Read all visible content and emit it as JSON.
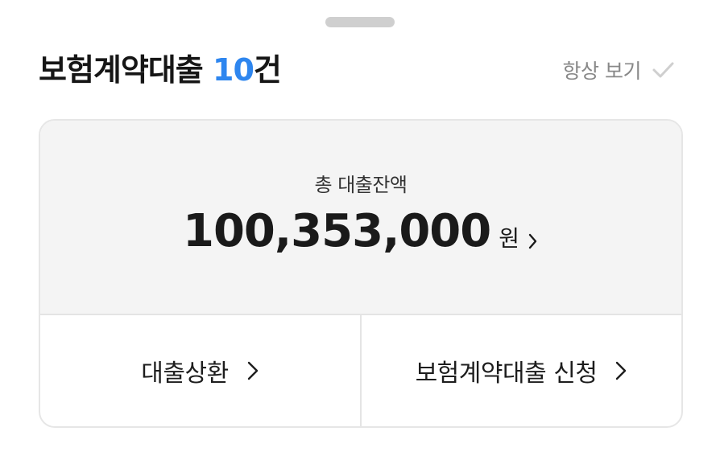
{
  "sheet": {
    "handle_label": ""
  },
  "header": {
    "title_prefix": "보험계약대출",
    "title_count": "10",
    "title_suffix": "건",
    "always_view_label": "항상 보기",
    "always_view_checked": false
  },
  "balance": {
    "label": "총 대출잔액",
    "amount": "100,353,000",
    "unit": "원"
  },
  "actions": [
    {
      "label": "대출상환"
    },
    {
      "label": "보험계약대출 신청"
    }
  ],
  "colors": {
    "accent": "#2e86ef",
    "card_background": "#f4f4f4",
    "muted_text": "#888888",
    "check_icon": "#cfcfcf"
  }
}
